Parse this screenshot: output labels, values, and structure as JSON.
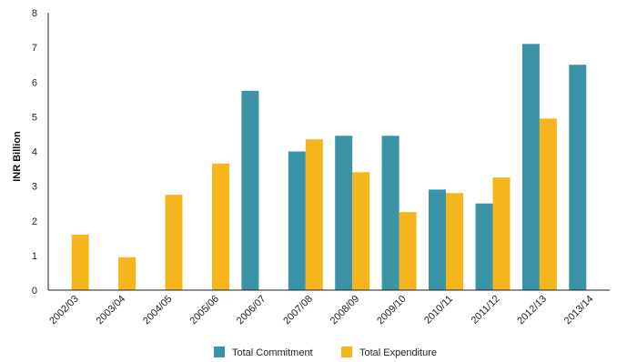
{
  "chart_data": {
    "type": "bar",
    "title": "",
    "xlabel": "",
    "ylabel": "INR Billion",
    "ylim": [
      0,
      8
    ],
    "yticks": [
      0,
      1,
      2,
      3,
      4,
      5,
      6,
      7,
      8
    ],
    "grid": false,
    "legend_position": "bottom",
    "categories": [
      "2002/03",
      "2003/04",
      "2004/05",
      "2005/06",
      "2006/07",
      "2007/08",
      "2008/09",
      "2009/10",
      "2010/11",
      "2011/12",
      "2012/13",
      "2013/14"
    ],
    "series": [
      {
        "name": "Total Commitment",
        "color": "#3a93a7",
        "values": [
          null,
          null,
          null,
          null,
          5.75,
          4.0,
          4.45,
          4.45,
          2.9,
          2.5,
          7.1,
          6.5
        ]
      },
      {
        "name": "Total Expenditure",
        "color": "#f7b51d",
        "values": [
          1.6,
          0.95,
          2.75,
          3.65,
          null,
          4.35,
          3.4,
          2.25,
          2.8,
          3.25,
          4.95,
          null
        ]
      }
    ]
  }
}
